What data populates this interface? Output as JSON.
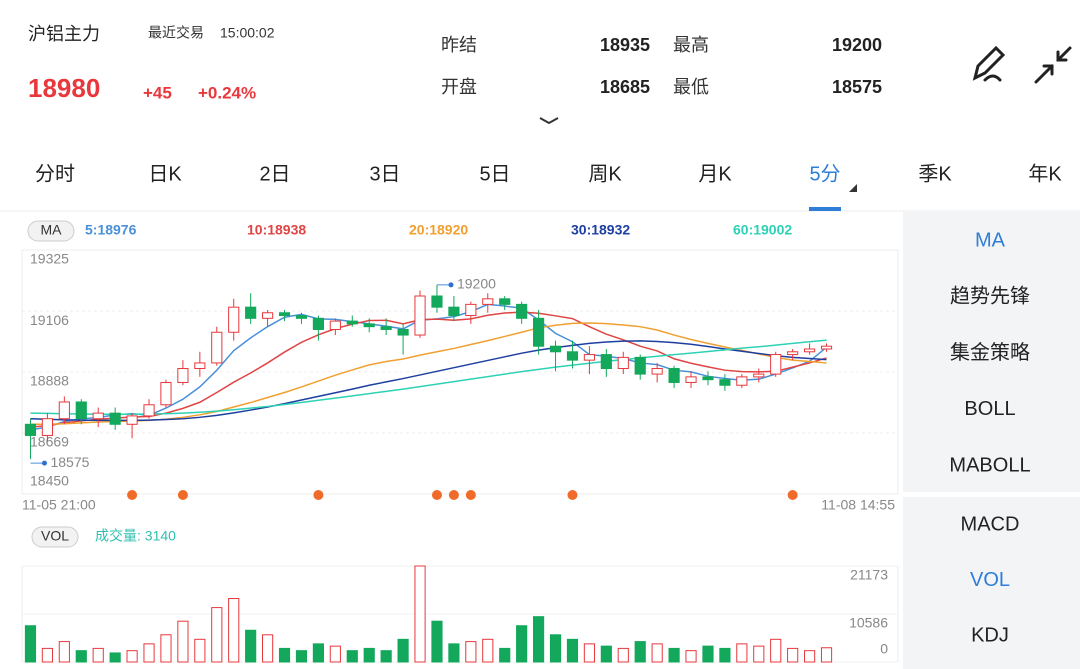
{
  "header": {
    "title": "沪铝主力",
    "last_trade_label": "最近交易",
    "time": "15:00:02",
    "price": 18980,
    "change": "+45",
    "change_pct": "+0.24%",
    "stats": [
      {
        "label": "昨结",
        "value": 18935
      },
      {
        "label": "最高",
        "value": 19200
      },
      {
        "label": "开盘",
        "value": 18685
      },
      {
        "label": "最低",
        "value": 18575
      }
    ]
  },
  "tabs": {
    "items": [
      "分时",
      "日K",
      "2日",
      "3日",
      "5日",
      "周K",
      "月K",
      "5分",
      "季K",
      "年K"
    ],
    "active": 7
  },
  "sidebar": {
    "indicators": [
      "MA",
      "趋势先锋",
      "集金策略",
      "BOLL",
      "MABOLL"
    ],
    "active": 0,
    "sub_indicators": [
      "MACD",
      "VOL",
      "KDJ"
    ],
    "sub_active": 1
  },
  "chart_data": [
    {
      "type": "candlestick",
      "legend_label": "MA",
      "up_color": "#e8383d",
      "down_color": "#13a85b",
      "ylim": [
        18450,
        19325
      ],
      "yticks": [
        18450,
        18669,
        18888,
        19106,
        19325
      ],
      "grid": true,
      "x_labels": [
        "11-05 21:00",
        "11-08 14:55"
      ],
      "open": [
        18700,
        18660,
        18720,
        18780,
        18720,
        18740,
        18700,
        18730,
        18770,
        18850,
        18900,
        18920,
        19030,
        19120,
        19080,
        19100,
        19090,
        19080,
        19040,
        19070,
        19060,
        19050,
        19040,
        19020,
        19160,
        19120,
        19090,
        19130,
        19150,
        19130,
        19080,
        18980,
        18960,
        18930,
        18950,
        18900,
        18940,
        18880,
        18900,
        18850,
        18870,
        18860,
        18840,
        18870,
        18880,
        18950,
        18960,
        18970
      ],
      "high": [
        18720,
        18740,
        18800,
        18790,
        18760,
        18760,
        18740,
        18790,
        18860,
        18930,
        18960,
        19050,
        19150,
        19170,
        19110,
        19110,
        19100,
        19090,
        19080,
        19090,
        19080,
        19080,
        19060,
        19180,
        19200,
        19160,
        19140,
        19170,
        19160,
        19140,
        19110,
        19000,
        19000,
        18980,
        18970,
        18960,
        18950,
        18920,
        18910,
        18890,
        18890,
        18880,
        18880,
        18900,
        18960,
        18970,
        18990,
        18990
      ],
      "low": [
        18575,
        18640,
        18700,
        18700,
        18690,
        18680,
        18650,
        18720,
        18760,
        18840,
        18870,
        18910,
        19000,
        19060,
        19050,
        19070,
        19060,
        19000,
        19020,
        19050,
        19030,
        19020,
        18950,
        19010,
        19100,
        19070,
        19060,
        19100,
        19110,
        19060,
        18950,
        18890,
        18900,
        18880,
        18870,
        18880,
        18860,
        18850,
        18830,
        18830,
        18840,
        18820,
        18830,
        18850,
        18870,
        18930,
        18950,
        18960
      ],
      "close": [
        18660,
        18720,
        18780,
        18720,
        18740,
        18700,
        18730,
        18770,
        18850,
        18900,
        18920,
        19030,
        19120,
        19080,
        19100,
        19090,
        19080,
        19040,
        19070,
        19060,
        19050,
        19040,
        19020,
        19160,
        19120,
        19090,
        19130,
        19150,
        19130,
        19080,
        18980,
        18960,
        18930,
        18950,
        18900,
        18940,
        18880,
        18900,
        18850,
        18870,
        18860,
        18840,
        18870,
        18880,
        18950,
        18960,
        18970,
        18980
      ],
      "series": [
        {
          "name": "5:18976",
          "color": "#4a90d9",
          "values": [
            18680,
            18690,
            18710,
            18720,
            18724,
            18734,
            18738,
            18732,
            18758,
            18790,
            18834,
            18894,
            18964,
            19010,
            19050,
            19084,
            19094,
            19078,
            19076,
            19068,
            19060,
            19052,
            19042,
            19074,
            19078,
            19086,
            19104,
            19130,
            19124,
            19116,
            19074,
            19026,
            18996,
            18950,
            18944,
            18936,
            18920,
            18914,
            18894,
            18888,
            18872,
            18864,
            18858,
            18862,
            18880,
            18902,
            18926,
            18976
          ]
        },
        {
          "name": "10:18938",
          "color": "#e04545",
          "values": [
            18690,
            18695,
            18705,
            18712,
            18718,
            18722,
            18726,
            18728,
            18740,
            18757,
            18779,
            18814,
            18851,
            18884,
            18920,
            18959,
            18994,
            19021,
            19043,
            19059,
            19072,
            19073,
            19060,
            19075,
            19077,
            19073,
            19078,
            19091,
            19099,
            19102,
            19098,
            19089,
            19079,
            19050,
            19023,
            19003,
            18980,
            18963,
            18935,
            18919,
            18906,
            18894,
            18889,
            18888,
            18890,
            18905,
            18920,
            18938
          ]
        },
        {
          "name": "20:18920",
          "color": "#f0a030",
          "values": [
            18700,
            18700,
            18702,
            18705,
            18708,
            18710,
            18712,
            18714,
            18718,
            18725,
            18734,
            18746,
            18762,
            18778,
            18796,
            18814,
            18834,
            18855,
            18876,
            18895,
            18913,
            18925,
            18934,
            18948,
            18960,
            18972,
            18986,
            19000,
            19015,
            19030,
            19046,
            19055,
            19062,
            19063,
            19061,
            19056,
            19050,
            19038,
            19020,
            19004,
            18990,
            18977,
            18965,
            18952,
            18940,
            18930,
            18925,
            18920
          ]
        },
        {
          "name": "30:18932",
          "color": "#1d3fa0",
          "values": [
            18720,
            18718,
            18716,
            18715,
            18714,
            18714,
            18714,
            18715,
            18717,
            18720,
            18725,
            18732,
            18741,
            18751,
            18762,
            18774,
            18787,
            18800,
            18813,
            18826,
            18840,
            18852,
            18864,
            18877,
            18890,
            18903,
            18916,
            18929,
            18942,
            18955,
            18966,
            18975,
            18983,
            18990,
            18995,
            18998,
            18999,
            18997,
            18993,
            18987,
            18979,
            18970,
            18962,
            18954,
            18946,
            18940,
            18936,
            18932
          ]
        },
        {
          "name": "60:19002",
          "color": "#2fd1b5",
          "values": [
            18740,
            18739,
            18738,
            18737,
            18736,
            18736,
            18736,
            18737,
            18738,
            18740,
            18743,
            18747,
            18752,
            18758,
            18764,
            18771,
            18778,
            18786,
            18794,
            18802,
            18810,
            18818,
            18826,
            18835,
            18844,
            18853,
            18862,
            18871,
            18880,
            18889,
            18897,
            18905,
            18912,
            18919,
            18926,
            18932,
            18938,
            18944,
            18950,
            18955,
            18961,
            18967,
            18973,
            18978,
            18984,
            18990,
            18996,
            19002
          ]
        }
      ],
      "annotations": [
        {
          "text": "19200",
          "index": 24
        },
        {
          "text": "18575",
          "index": 0
        }
      ],
      "signals": [
        6,
        9,
        17,
        24,
        25,
        26,
        32,
        45
      ],
      "signal_color": "#f06a2a"
    },
    {
      "type": "volume",
      "legend_label": "VOL",
      "legend": "成交量: 3140",
      "legend_color": "#2fbfb0",
      "ylim": [
        0,
        21173
      ],
      "yticks": [
        0,
        10586,
        21173
      ],
      "values": [
        8000,
        3000,
        4500,
        2500,
        3000,
        2000,
        2500,
        4000,
        6000,
        9000,
        5000,
        12000,
        14000,
        7000,
        6000,
        3000,
        2500,
        4000,
        3500,
        2500,
        3000,
        2500,
        5000,
        21173,
        9000,
        4000,
        4500,
        5000,
        3000,
        8000,
        10000,
        6000,
        5000,
        4000,
        3500,
        3000,
        4500,
        4000,
        3000,
        2500,
        3500,
        3000,
        4000,
        3500,
        5000,
        3000,
        2500,
        3140
      ]
    }
  ]
}
